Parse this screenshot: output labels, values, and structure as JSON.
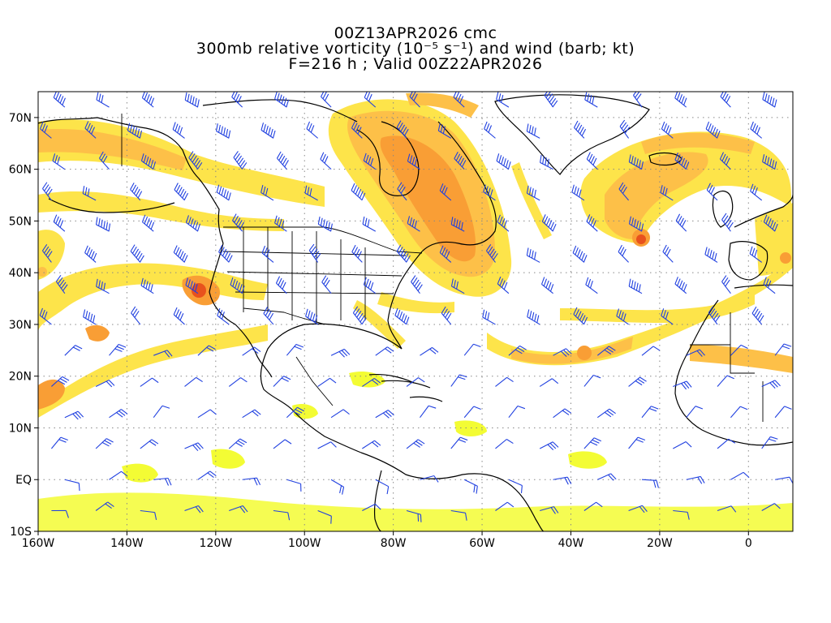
{
  "titles": {
    "line1": "00Z13APR2026 cmc",
    "line2": "300mb relative vorticity (10⁻⁵ s⁻¹) and wind (barb; kt)",
    "line3": "F=216 h ; Valid 00Z22APR2026"
  },
  "axes": {
    "lon_labels": [
      "160W",
      "140W",
      "120W",
      "100W",
      "80W",
      "60W",
      "40W",
      "20W",
      "0"
    ],
    "lat_labels": [
      "70N",
      "60N",
      "50N",
      "40N",
      "30N",
      "20N",
      "10N",
      "EQ",
      "10S"
    ],
    "lon_values": [
      -160,
      -140,
      -120,
      -100,
      -80,
      -60,
      -40,
      -20,
      0
    ],
    "lat_values": [
      70,
      60,
      50,
      40,
      30,
      20,
      10,
      0,
      -10
    ],
    "lon_range": [
      -160,
      10
    ],
    "lat_range": [
      -10,
      75
    ],
    "grid": "dotted"
  },
  "colors": {
    "shade_light": "#f3fc34",
    "shade_mid1": "#fde44a",
    "shade_mid2": "#fdc048",
    "shade_strong": "#f99e35",
    "shade_max": "#e8521d",
    "barbs": "#2040e0",
    "coastline": "#000000",
    "grid": "#888888"
  }
}
